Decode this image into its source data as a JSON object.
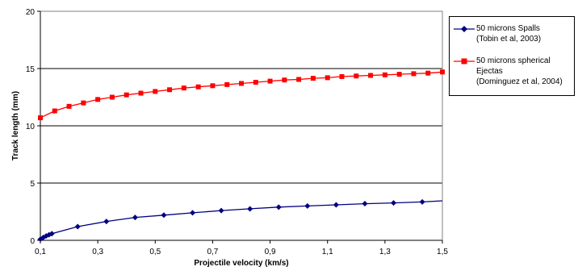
{
  "chart_data": {
    "type": "line",
    "xlabel": "Projectile velocity (km/s)",
    "ylabel": "Track length (mm)",
    "xlim": [
      0.1,
      1.5
    ],
    "ylim": [
      0,
      20
    ],
    "xticks": [
      "0,1",
      "0,3",
      "0,5",
      "0,7",
      "0,9",
      "1,1",
      "1,3",
      "1,5"
    ],
    "xtick_values": [
      0.1,
      0.3,
      0.5,
      0.7,
      0.9,
      1.1,
      1.3,
      1.5
    ],
    "yticks": [
      "0",
      "5",
      "10",
      "15",
      "20"
    ],
    "ytick_values": [
      0,
      5,
      10,
      15,
      20
    ],
    "grid": "horizontal",
    "legend_position": "right",
    "series": [
      {
        "name": "50 microns Spalls (Tobin et al, 2003)",
        "legend_lines": [
          "50 microns Spalls",
          "(Tobin et al, 2003)"
        ],
        "color": "#000080",
        "marker": "diamond",
        "x": [
          0.1,
          0.11,
          0.12,
          0.13,
          0.14,
          0.23,
          0.33,
          0.43,
          0.53,
          0.63,
          0.73,
          0.83,
          0.93,
          1.03,
          1.13,
          1.23,
          1.33,
          1.43
        ],
        "y": [
          0.1,
          0.25,
          0.38,
          0.48,
          0.58,
          1.2,
          1.65,
          2.0,
          2.2,
          2.4,
          2.6,
          2.75,
          2.9,
          3.0,
          3.1,
          3.2,
          3.27,
          3.35
        ],
        "line_end": [
          1.5,
          3.45
        ]
      },
      {
        "name": "50 microns spherical Ejectas (Dominguez et al, 2004)",
        "legend_lines": [
          "50 microns spherical",
          "Ejectas",
          "(Dominguez et al, 2004)"
        ],
        "color": "#ff0000",
        "marker": "square",
        "x": [
          0.1,
          0.15,
          0.2,
          0.25,
          0.3,
          0.35,
          0.4,
          0.45,
          0.5,
          0.55,
          0.6,
          0.65,
          0.7,
          0.75,
          0.8,
          0.85,
          0.9,
          0.95,
          1.0,
          1.05,
          1.1,
          1.15,
          1.2,
          1.25,
          1.3,
          1.35,
          1.4,
          1.45,
          1.5
        ],
        "y": [
          10.7,
          11.3,
          11.7,
          12.0,
          12.3,
          12.5,
          12.7,
          12.85,
          13.0,
          13.15,
          13.3,
          13.4,
          13.5,
          13.6,
          13.7,
          13.8,
          13.9,
          14.0,
          14.05,
          14.15,
          14.2,
          14.3,
          14.35,
          14.4,
          14.45,
          14.5,
          14.55,
          14.6,
          14.7
        ]
      }
    ]
  }
}
